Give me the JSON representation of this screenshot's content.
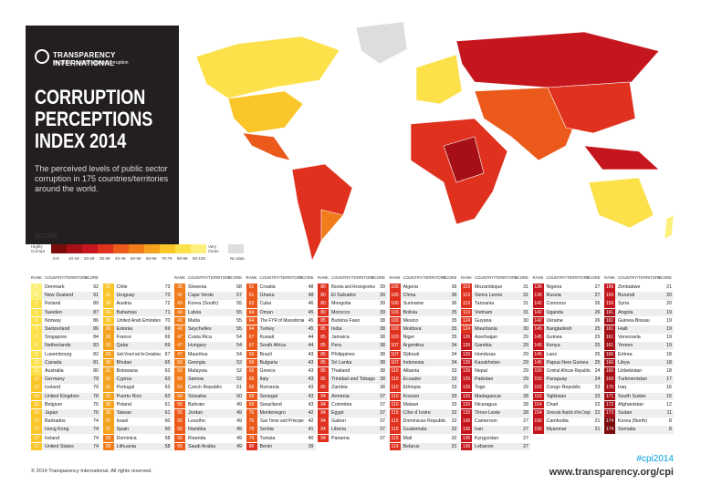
{
  "header": {
    "logo_name": "TRANSPARENCY INTERNATIONAL",
    "logo_tagline": "the global coalition against corruption",
    "title_lines": [
      "CORRUPTION",
      "PERCEPTIONS",
      "INDEX 2014"
    ],
    "subtitle": "The perceived levels of public sector corruption in 175 countries/territories around the world."
  },
  "legend": {
    "title": "SCORE",
    "low_label": "Highly Corrupt",
    "high_label": "Very Clean",
    "bins": [
      "0-9",
      "10-19",
      "20-29",
      "30-39",
      "40-49",
      "50-59",
      "60-69",
      "70-79",
      "80-89",
      "90-100"
    ],
    "colors": [
      "#7a0c0c",
      "#a50f15",
      "#c5161d",
      "#e0311f",
      "#ec5a1b",
      "#f07c1a",
      "#f5a21e",
      "#fbc62a",
      "#fce14a",
      "#fdf07a"
    ],
    "no_data_label": "No data",
    "no_data_color": "#dddddd"
  },
  "table": {
    "headers": [
      "RANK",
      "COUNTRY/TERRITORY",
      "SCORE"
    ],
    "columns": [
      [
        [
          1,
          "Denmark",
          92
        ],
        [
          2,
          "New Zealand",
          91
        ],
        [
          3,
          "Finland",
          89
        ],
        [
          4,
          "Sweden",
          87
        ],
        [
          5,
          "Norway",
          86
        ],
        [
          5,
          "Switzerland",
          86
        ],
        [
          7,
          "Singapore",
          84
        ],
        [
          8,
          "Netherlands",
          83
        ],
        [
          9,
          "Luxembourg",
          82
        ],
        [
          10,
          "Canada",
          81
        ],
        [
          11,
          "Australia",
          80
        ],
        [
          12,
          "Germany",
          79
        ],
        [
          12,
          "Iceland",
          79
        ],
        [
          14,
          "United Kingdom",
          78
        ],
        [
          15,
          "Belgium",
          76
        ],
        [
          15,
          "Japan",
          76
        ],
        [
          17,
          "Barbados",
          74
        ],
        [
          17,
          "Hong Kong",
          74
        ],
        [
          17,
          "Ireland",
          74
        ],
        [
          17,
          "United States",
          74
        ]
      ],
      [
        [
          21,
          "Chile",
          73
        ],
        [
          21,
          "Uruguay",
          73
        ],
        [
          23,
          "Austria",
          72
        ],
        [
          24,
          "Bahamas",
          71
        ],
        [
          25,
          "United Arab Emirates",
          70
        ],
        [
          26,
          "Estonia",
          69
        ],
        [
          26,
          "France",
          69
        ],
        [
          26,
          "Qatar",
          69
        ],
        [
          29,
          "Saint Vincent and the Grenadines",
          67
        ],
        [
          30,
          "Bhutan",
          65
        ],
        [
          31,
          "Botswana",
          63
        ],
        [
          31,
          "Cyprus",
          63
        ],
        [
          31,
          "Portugal",
          63
        ],
        [
          31,
          "Puerto Rico",
          63
        ],
        [
          35,
          "Poland",
          61
        ],
        [
          35,
          "Taiwan",
          61
        ],
        [
          37,
          "Israel",
          60
        ],
        [
          37,
          "Spain",
          60
        ],
        [
          39,
          "Dominica",
          58
        ],
        [
          39,
          "Lithuania",
          58
        ]
      ],
      [
        [
          39,
          "Slovenia",
          58
        ],
        [
          42,
          "Cape Verde",
          57
        ],
        [
          43,
          "Korea (South)",
          55
        ],
        [
          43,
          "Latvia",
          55
        ],
        [
          43,
          "Malta",
          55
        ],
        [
          43,
          "Seychelles",
          55
        ],
        [
          47,
          "Costa Rica",
          54
        ],
        [
          47,
          "Hungary",
          54
        ],
        [
          47,
          "Mauritius",
          54
        ],
        [
          50,
          "Georgia",
          52
        ],
        [
          50,
          "Malaysia",
          52
        ],
        [
          50,
          "Samoa",
          52
        ],
        [
          53,
          "Czech Republic",
          51
        ],
        [
          54,
          "Slovakia",
          50
        ],
        [
          55,
          "Bahrain",
          49
        ],
        [
          55,
          "Jordan",
          49
        ],
        [
          55,
          "Lesotho",
          49
        ],
        [
          55,
          "Namibia",
          49
        ],
        [
          55,
          "Rwanda",
          49
        ],
        [
          55,
          "Saudi Arabia",
          49
        ]
      ],
      [
        [
          61,
          "Croatia",
          48
        ],
        [
          61,
          "Ghana",
          48
        ],
        [
          63,
          "Cuba",
          46
        ],
        [
          64,
          "Oman",
          45
        ],
        [
          64,
          "The FYR of Macedonia",
          45
        ],
        [
          64,
          "Turkey",
          45
        ],
        [
          67,
          "Kuwait",
          44
        ],
        [
          67,
          "South Africa",
          44
        ],
        [
          69,
          "Brazil",
          43
        ],
        [
          69,
          "Bulgaria",
          43
        ],
        [
          69,
          "Greece",
          43
        ],
        [
          69,
          "Italy",
          43
        ],
        [
          69,
          "Romania",
          43
        ],
        [
          69,
          "Senegal",
          43
        ],
        [
          69,
          "Swaziland",
          43
        ],
        [
          76,
          "Montenegro",
          42
        ],
        [
          76,
          "Sao Tome and Principe",
          42
        ],
        [
          78,
          "Serbia",
          41
        ],
        [
          79,
          "Tunisia",
          40
        ],
        [
          80,
          "Benin",
          39
        ]
      ],
      [
        [
          80,
          "Bosnia and Herzegovina",
          39
        ],
        [
          80,
          "El Salvador",
          39
        ],
        [
          80,
          "Mongolia",
          39
        ],
        [
          80,
          "Morocco",
          39
        ],
        [
          85,
          "Burkina Faso",
          38
        ],
        [
          85,
          "India",
          38
        ],
        [
          85,
          "Jamaica",
          38
        ],
        [
          85,
          "Peru",
          38
        ],
        [
          85,
          "Philippines",
          38
        ],
        [
          85,
          "Sri Lanka",
          38
        ],
        [
          85,
          "Thailand",
          38
        ],
        [
          85,
          "Trinidad and Tobago",
          38
        ],
        [
          85,
          "Zambia",
          38
        ],
        [
          94,
          "Armenia",
          37
        ],
        [
          94,
          "Colombia",
          37
        ],
        [
          94,
          "Egypt",
          37
        ],
        [
          94,
          "Gabon",
          37
        ],
        [
          94,
          "Liberia",
          37
        ],
        [
          94,
          "Panama",
          37
        ]
      ],
      [
        [
          100,
          "Algeria",
          36
        ],
        [
          100,
          "China",
          36
        ],
        [
          100,
          "Suriname",
          36
        ],
        [
          103,
          "Bolivia",
          35
        ],
        [
          103,
          "Mexico",
          35
        ],
        [
          103,
          "Moldova",
          35
        ],
        [
          103,
          "Niger",
          35
        ],
        [
          107,
          "Argentina",
          34
        ],
        [
          107,
          "Djibouti",
          34
        ],
        [
          107,
          "Indonesia",
          34
        ],
        [
          110,
          "Albania",
          33
        ],
        [
          110,
          "Ecuador",
          33
        ],
        [
          110,
          "Ethiopia",
          33
        ],
        [
          110,
          "Kosovo",
          33
        ],
        [
          110,
          "Malawi",
          33
        ],
        [
          115,
          "Côte d´Ivoire",
          32
        ],
        [
          115,
          "Dominican Republic",
          32
        ],
        [
          115,
          "Guatemala",
          32
        ],
        [
          115,
          "Mali",
          32
        ],
        [
          119,
          "Belarus",
          31
        ]
      ],
      [
        [
          119,
          "Mozambique",
          31
        ],
        [
          119,
          "Sierra Leone",
          31
        ],
        [
          119,
          "Tanzania",
          31
        ],
        [
          119,
          "Vietnam",
          31
        ],
        [
          124,
          "Guyana",
          30
        ],
        [
          124,
          "Mauritania",
          30
        ],
        [
          126,
          "Azerbaijan",
          29
        ],
        [
          126,
          "Gambia",
          29
        ],
        [
          126,
          "Honduras",
          29
        ],
        [
          126,
          "Kazakhstan",
          29
        ],
        [
          126,
          "Nepal",
          29
        ],
        [
          126,
          "Pakistan",
          29
        ],
        [
          126,
          "Togo",
          29
        ],
        [
          133,
          "Madagascar",
          28
        ],
        [
          133,
          "Nicaragua",
          28
        ],
        [
          133,
          "Timor-Leste",
          28
        ],
        [
          136,
          "Cameroon",
          27
        ],
        [
          136,
          "Iran",
          27
        ],
        [
          136,
          "Kyrgyzstan",
          27
        ],
        [
          136,
          "Lebanon",
          27
        ]
      ],
      [
        [
          136,
          "Nigeria",
          27
        ],
        [
          136,
          "Russia",
          27
        ],
        [
          142,
          "Comoros",
          26
        ],
        [
          142,
          "Uganda",
          26
        ],
        [
          142,
          "Ukraine",
          26
        ],
        [
          145,
          "Bangladesh",
          25
        ],
        [
          145,
          "Guinea",
          25
        ],
        [
          145,
          "Kenya",
          25
        ],
        [
          145,
          "Laos",
          25
        ],
        [
          145,
          "Papua New Guinea",
          25
        ],
        [
          150,
          "Central African Republic",
          24
        ],
        [
          150,
          "Paraguay",
          24
        ],
        [
          152,
          "Congo Republic",
          23
        ],
        [
          152,
          "Tajikistan",
          23
        ],
        [
          154,
          "Chad",
          22
        ],
        [
          154,
          "Democratic Republic of the Congo",
          22
        ],
        [
          156,
          "Cambodia",
          21
        ],
        [
          156,
          "Myanmar",
          21
        ]
      ],
      [
        [
          156,
          "Zimbabwe",
          21
        ],
        [
          159,
          "Burundi",
          20
        ],
        [
          159,
          "Syria",
          20
        ],
        [
          161,
          "Angola",
          19
        ],
        [
          161,
          "Guinea-Bissau",
          19
        ],
        [
          161,
          "Haiti",
          19
        ],
        [
          161,
          "Venezuela",
          19
        ],
        [
          161,
          "Yemen",
          19
        ],
        [
          166,
          "Eritrea",
          18
        ],
        [
          166,
          "Libya",
          18
        ],
        [
          166,
          "Uzbekistan",
          18
        ],
        [
          169,
          "Turkmenistan",
          17
        ],
        [
          170,
          "Iraq",
          16
        ],
        [
          171,
          "South Sudan",
          15
        ],
        [
          172,
          "Afghanistan",
          12
        ],
        [
          173,
          "Sudan",
          11
        ],
        [
          174,
          "Korea (North)",
          8
        ],
        [
          174,
          "Somalia",
          8
        ]
      ]
    ]
  },
  "footer": {
    "copyright": "© 2014 Transparency International. All rights reserved.",
    "hashtag": "#cpi2014",
    "url": "www.transparency.org/cpi"
  }
}
